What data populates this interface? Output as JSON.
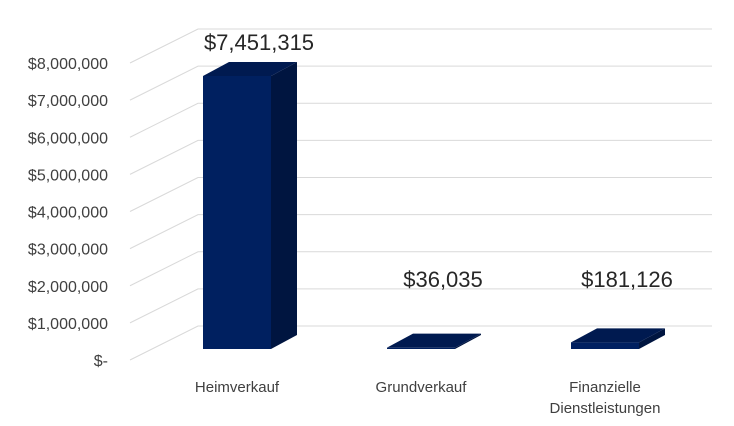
{
  "chart_data": {
    "type": "bar",
    "style": "3d-column",
    "categories": [
      "Heimverkauf",
      "Grundverkauf",
      "Finanzielle Dienstleistungen"
    ],
    "values": [
      7451315,
      36035,
      181126
    ],
    "data_labels": [
      "$7,451,315",
      "$36,035",
      "$181,126"
    ],
    "y_tick_labels": [
      "$-",
      "$1,000,000",
      "$2,000,000",
      "$3,000,000",
      "$4,000,000",
      "$5,000,000",
      "$6,000,000",
      "$7,000,000",
      "$8,000,000"
    ],
    "ylim": [
      0,
      8000000
    ],
    "grid": true,
    "title": "",
    "xlabel": "",
    "ylabel": "",
    "colors": {
      "bar_front": "#002060",
      "bar_side": "#001540",
      "bar_top": "#001a50",
      "grid": "#d9d9d9",
      "text": "#404040"
    }
  }
}
